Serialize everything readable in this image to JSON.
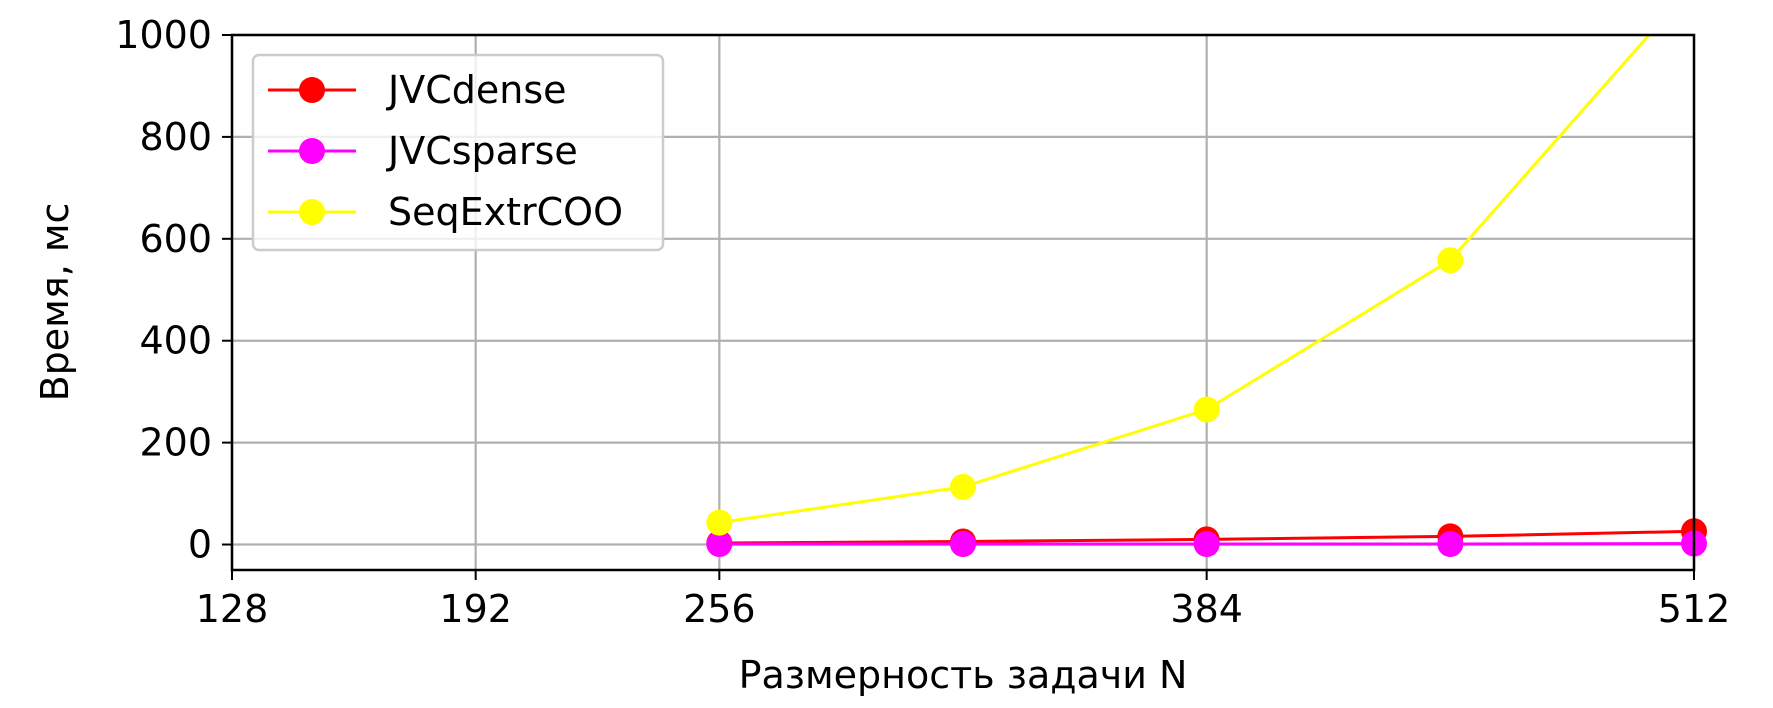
{
  "chart_data": {
    "type": "line",
    "xlabel": "Размерность задачи N",
    "ylabel": "Время, мс",
    "xlim": [
      128,
      512
    ],
    "ylim": [
      -50,
      1000
    ],
    "xticks": [
      128,
      192,
      256,
      384,
      512
    ],
    "xtick_labels": [
      "128",
      "192",
      "256",
      "384",
      "512"
    ],
    "yticks": [
      0,
      200,
      400,
      600,
      800,
      1000
    ],
    "ytick_labels": [
      "0",
      "200",
      "400",
      "600",
      "800",
      "1000"
    ],
    "grid": true,
    "legend_position": "top-left",
    "series": [
      {
        "name": "JVCdense",
        "color": "#ff0000",
        "x": [
          256,
          320,
          384,
          448,
          512
        ],
        "y": [
          3,
          6,
          10,
          16,
          26
        ]
      },
      {
        "name": "JVCsparse",
        "color": "#ff00ff",
        "x": [
          256,
          320,
          384,
          448,
          512
        ],
        "y": [
          1,
          1,
          1,
          1,
          2
        ]
      },
      {
        "name": "SeqExtrCOO",
        "color": "#ffff00",
        "x": [
          256,
          320,
          384,
          448,
          512
        ],
        "y": [
          43,
          113,
          265,
          558,
          1100
        ]
      }
    ]
  }
}
